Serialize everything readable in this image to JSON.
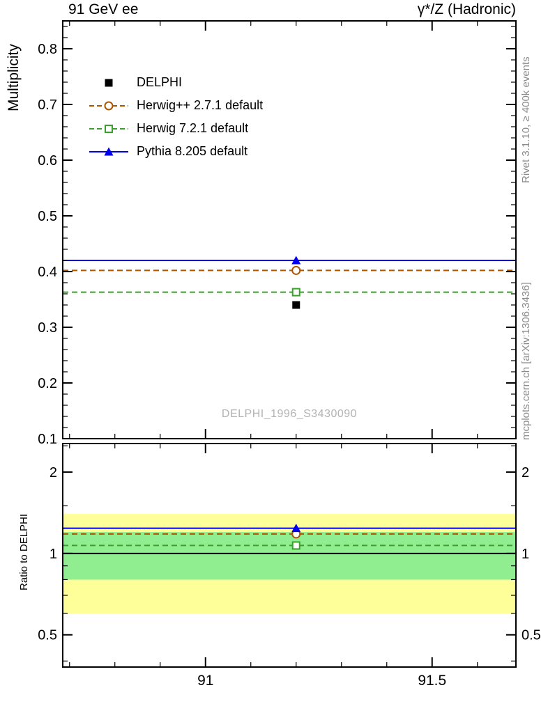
{
  "header": {
    "left": "91 GeV ee",
    "right": "γ*/Z (Hadronic)"
  },
  "watermark": "DELPHI_1996_S3430090",
  "side_labels": {
    "rivet": "Rivet 3.1.10, ≥ 400k events",
    "mcplots": "mcplots.cern.ch [arXiv:1306.3436]"
  },
  "chart_data": {
    "type": "line",
    "title": "",
    "xlabel": "",
    "x_axis": {
      "range": [
        90.685,
        91.685
      ],
      "major_ticks": [
        91,
        91.5
      ],
      "tick_labels": [
        "91",
        "91.5"
      ],
      "minor_tick_step": 0.1
    },
    "main_panel": {
      "ylabel": "Multiplicity",
      "scale": "linear",
      "y_range": [
        0.1,
        0.85
      ],
      "y_major_ticks": [
        0.1,
        0.2,
        0.3,
        0.4,
        0.5,
        0.6,
        0.7,
        0.8
      ],
      "y_tick_labels": [
        "0.1",
        "0.2",
        "0.3",
        "0.4",
        "0.5",
        "0.6",
        "0.7",
        "0.8"
      ],
      "y_minor_step": 0.02
    },
    "ratio_panel": {
      "ylabel": "Ratio to DELPHI",
      "scale": "log",
      "y_range": [
        0.38,
        2.55
      ],
      "y_major_ticks": [
        0.5,
        1,
        2
      ],
      "y_tick_labels": [
        "0.5",
        "1",
        "2"
      ],
      "y_minor_ticks": [
        0.4,
        0.6,
        0.7,
        0.8,
        0.9,
        1.5,
        2.5
      ],
      "reference_line": 1.0,
      "bands": [
        {
          "name": "yellow-uncertainty-band",
          "color": "#ffff99",
          "low": 0.6,
          "high": 1.4
        },
        {
          "name": "green-uncertainty-band",
          "color": "#90ee90",
          "low": 0.8,
          "high": 1.2
        }
      ]
    },
    "marker_x": 91.2,
    "series": [
      {
        "name": "DELPHI",
        "color": "#000000",
        "marker": "filled-square",
        "line": "none",
        "value": 0.34,
        "ratio": 1.0
      },
      {
        "name": "Herwig++ 2.7.1 default",
        "color": "#aa5500",
        "marker": "open-circle",
        "line": "dashed",
        "value": 0.402,
        "ratio": 1.18
      },
      {
        "name": "Herwig 7.2.1 default",
        "color": "#3aa02c",
        "marker": "open-square",
        "line": "dashed",
        "value": 0.363,
        "ratio": 1.07
      },
      {
        "name": "Pythia 8.205 default",
        "color": "#0000ee",
        "marker": "filled-triangle",
        "line": "solid",
        "value": 0.42,
        "ratio": 1.24
      }
    ]
  }
}
